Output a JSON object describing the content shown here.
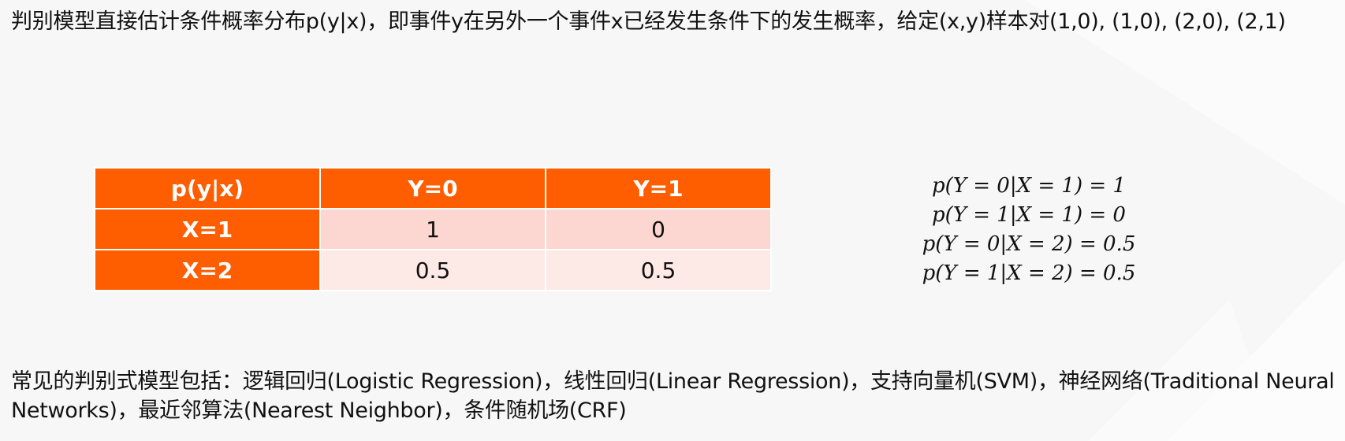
{
  "intro": {
    "text": "判别模型直接估计条件概率分布p(y|x)，即事件y在另外一个事件x已经发生条件下的发生概率，给定(x,y)样本对(1,0), (1,0), (2,0), (2,1)"
  },
  "table": {
    "headers": [
      "p(y|x)",
      "Y=0",
      "Y=1"
    ],
    "rows": [
      {
        "label": "X=1",
        "y0": "1",
        "y1": "0"
      },
      {
        "label": "X=2",
        "y0": "0.5",
        "y1": "0.5"
      }
    ]
  },
  "formulas": [
    "p(Y = 0|X = 1) = 1",
    "p(Y = 1|X = 1) = 0",
    "p(Y = 0|X = 2) = 0.5",
    "p(Y = 1|X = 2) = 0.5"
  ],
  "summary": {
    "text": "常见的判别式模型包括：逻辑回归(Logistic Regression)，线性回归(Linear Regression)，支持向量机(SVM)，神经网络(Traditional Neural Networks)，最近邻算法(Nearest Neighbor)，条件随机场(CRF)"
  },
  "colors": {
    "header_orange": "#fe5d00",
    "row1_pink": "#fcd6d0",
    "row2_pink": "#fde9e6",
    "background": "#f7f7f7"
  }
}
